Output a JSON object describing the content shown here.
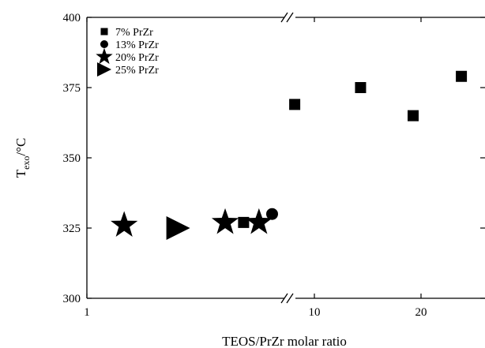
{
  "chart_data": {
    "type": "scatter",
    "title": "",
    "xlabel": "TEOS/PrZr molar ratio",
    "ylabel": {
      "main": "T",
      "sub": "exo",
      "unit": "/°C"
    },
    "ylim": [
      300,
      400
    ],
    "y_ticks": [
      "300",
      "325",
      "350",
      "375",
      "400"
    ],
    "x_axis": {
      "scale": "log",
      "broken": true,
      "left_segment_ticks": [
        "1"
      ],
      "right_segment_ticks": [
        "10",
        "20"
      ]
    },
    "grid": false,
    "legend_position": "top-left",
    "series": [
      {
        "name": "7% PrZr",
        "marker": "square",
        "points": [
          {
            "x": 5.5,
            "y": 327
          },
          {
            "x": 8.8,
            "y": 369
          },
          {
            "x": 13.5,
            "y": 375
          },
          {
            "x": 19,
            "y": 365
          },
          {
            "x": 26,
            "y": 379
          }
        ]
      },
      {
        "name": "13% PrZr",
        "marker": "circle",
        "points": [
          {
            "x": 7.5,
            "y": 330
          }
        ]
      },
      {
        "name": "20% PrZr",
        "marker": "star",
        "points": [
          {
            "x": 1.5,
            "y": 326
          },
          {
            "x": 4.5,
            "y": 327
          },
          {
            "x": 6.5,
            "y": 327
          }
        ]
      },
      {
        "name": "25% PrZr",
        "marker": "triangle-right",
        "points": [
          {
            "x": 2.7,
            "y": 325
          }
        ]
      }
    ]
  },
  "colors": {
    "marker": "#000000",
    "axis": "#000000"
  }
}
